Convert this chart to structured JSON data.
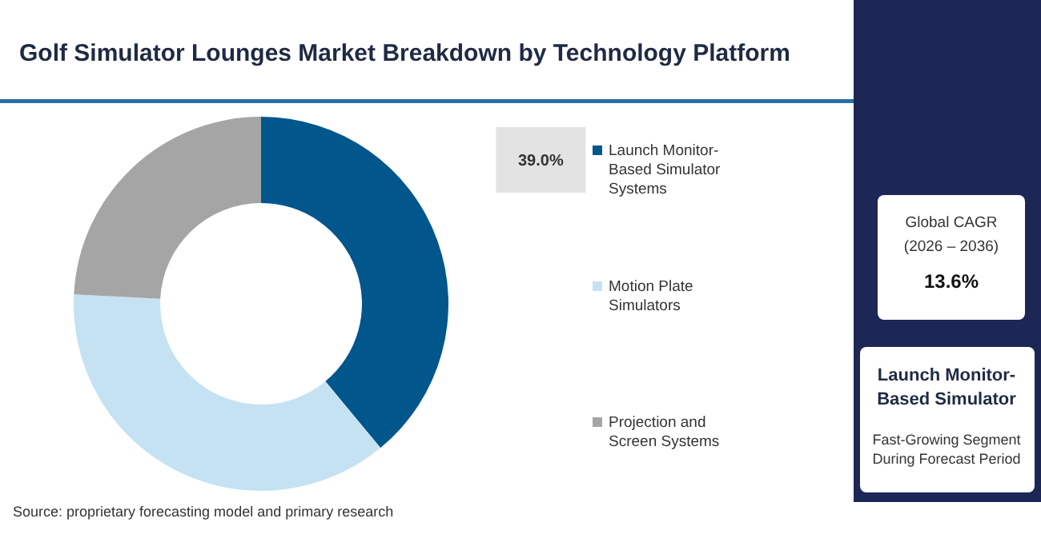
{
  "chart_data": {
    "type": "donut",
    "title": "Golf Simulator Lounges Market Breakdown by Technology Platform",
    "categories": [
      "Launch Monitor-Based Simulator Systems",
      "Motion Plate Simulators",
      "Projection and Screen Systems"
    ],
    "values": [
      39.0,
      36.8,
      24.2
    ],
    "colors": [
      "#01568c",
      "#c5e2f3",
      "#a5a5a5"
    ],
    "value_labels": [
      "39.0%",
      null,
      null
    ],
    "legend": "right",
    "annotations": [
      "Global CAGR",
      "(2026 – 2036)",
      "13.6%",
      "Launch Monitor-Based Simulator",
      "Fast-Growing Segment During Forecast Period",
      "Source: proprietary forecasting model and primary research"
    ]
  }
}
